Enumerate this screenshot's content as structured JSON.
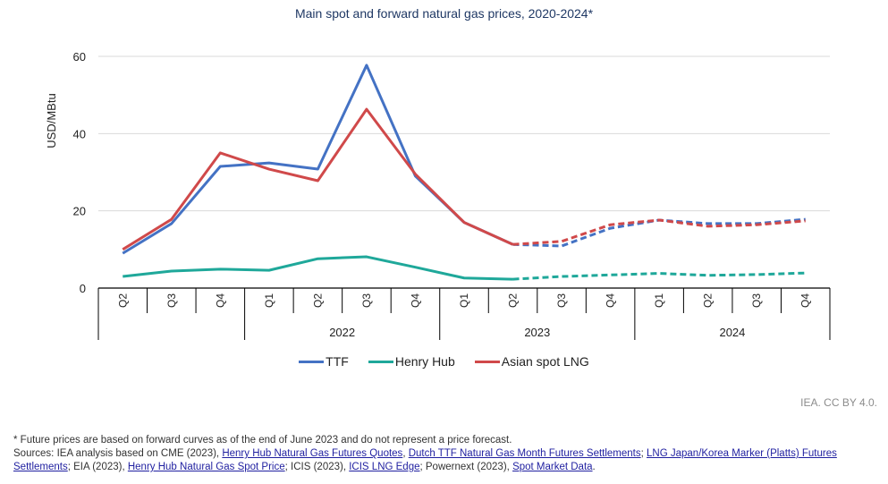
{
  "chart_data": {
    "type": "line",
    "title": "Main spot and forward natural gas prices, 2020-2024*",
    "ylabel": "USD/MBtu",
    "xlabel": "",
    "ylim": [
      0,
      60
    ],
    "yticks": [
      0,
      20,
      40,
      60
    ],
    "grid": true,
    "legend_position": "bottom-center",
    "categories": [
      "Q2",
      "Q3",
      "Q4",
      "Q1",
      "Q2",
      "Q3",
      "Q4",
      "Q1",
      "Q2",
      "Q3",
      "Q4",
      "Q1",
      "Q2",
      "Q3",
      "Q4"
    ],
    "year_groups": [
      {
        "label": "",
        "start": 0,
        "end": 2
      },
      {
        "label": "2022",
        "start": 3,
        "end": 6
      },
      {
        "label": "2023",
        "start": 7,
        "end": 10
      },
      {
        "label": "2024",
        "start": 11,
        "end": 14
      }
    ],
    "forward_start_index": 8,
    "series": [
      {
        "name": "TTF",
        "color": "#4472c4",
        "values": [
          9.0,
          16.7,
          31.5,
          32.4,
          30.8,
          57.7,
          29.0,
          17.0,
          11.3,
          10.9,
          15.5,
          17.6,
          16.7,
          16.7,
          17.8
        ]
      },
      {
        "name": "Henry Hub",
        "color": "#1fa89a",
        "values": [
          3.0,
          4.4,
          4.9,
          4.6,
          7.6,
          8.1,
          5.4,
          2.6,
          2.3,
          3.0,
          3.4,
          3.8,
          3.3,
          3.5,
          3.9
        ]
      },
      {
        "name": "Asian spot LNG",
        "color": "#d0494a",
        "values": [
          10.0,
          17.8,
          35.0,
          30.8,
          27.8,
          46.3,
          29.5,
          17.0,
          11.3,
          12.1,
          16.4,
          17.6,
          16.0,
          16.4,
          17.4
        ]
      }
    ]
  },
  "credit": "IEA. CC BY 4.0.",
  "footnote": {
    "note": "* Future prices are based on forward curves as of the end of June 2023 and do not represent a price forecast.",
    "sources_prefix": "Sources: IEA analysis based on CME (2023), ",
    "link1": "Henry Hub Natural Gas Futures Quotes",
    "sep1": ", ",
    "link2": "Dutch TTF Natural Gas Month Futures Settlements",
    "sep2": "; ",
    "link3": "LNG Japan/Korea Marker (Platts) Futures Settlements",
    "sep3": "; EIA (2023), ",
    "link4": "Henry Hub Natural Gas Spot Price",
    "sep4": "; ICIS (2023), ",
    "link5": "ICIS LNG Edge",
    "sep5": "; Powernext (2023), ",
    "link6": "Spot Market Data",
    "end": "."
  }
}
